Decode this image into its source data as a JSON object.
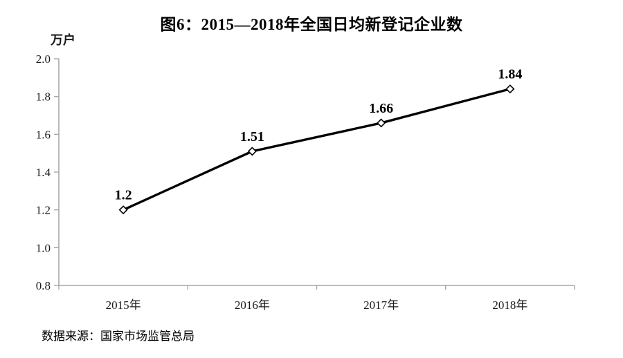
{
  "title": "图6：2015—2018年全国日均新登记企业数",
  "source": "数据来源：国家市场监管总局",
  "chart_data": {
    "type": "line",
    "title": "图6：2015—2018年全国日均新登记企业数",
    "unit_label": "万户",
    "categories": [
      "2015年",
      "2016年",
      "2017年",
      "2018年"
    ],
    "values": [
      1.2,
      1.51,
      1.66,
      1.84
    ],
    "point_labels": [
      "1.2",
      "1.51",
      "1.66",
      "1.84"
    ],
    "y_ticks": [
      "2.0",
      "1.8",
      "1.6",
      "1.4",
      "1.2",
      "1.0",
      "0.8"
    ],
    "ylim": [
      0.8,
      2.0
    ],
    "grid": false,
    "legend": "none",
    "marker": "open-diamond",
    "series_color": "#000000",
    "marker_fill": "#ffffff",
    "axis_color": "#a6a6a6",
    "tick_label_color": "#1a1a1a",
    "data_label_color": "#000000",
    "source_note": "数据来源：国家市场监管总局"
  }
}
